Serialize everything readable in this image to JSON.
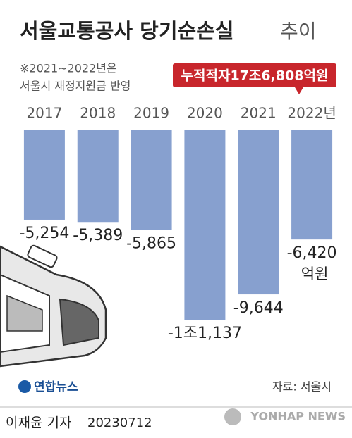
{
  "chart_data": {
    "type": "bar",
    "title": "서울교통공사 당기순손실",
    "title_suffix": "추이",
    "note": [
      "※2021~2022년은",
      "서울시 재정지원금 반영"
    ],
    "annotation": "누적적자17조6,808억원",
    "categories": [
      "2017",
      "2018",
      "2019",
      "2020",
      "2021",
      "2022년"
    ],
    "values": [
      -5254,
      -5389,
      -5865,
      -11137,
      -9644,
      -6420
    ],
    "value_labels": [
      "-5,254",
      "-5,389",
      "-5,865",
      "-1조1,137",
      "-9,644",
      "-6,420"
    ],
    "unit": "억원",
    "color": "#87a0cf",
    "ylim": [
      -12000,
      0
    ],
    "source": "자료: 서울시",
    "logo": "연합뉴스",
    "credit": "이재윤 기자",
    "date": "20230712",
    "agency": "YONHAP NEWS"
  }
}
